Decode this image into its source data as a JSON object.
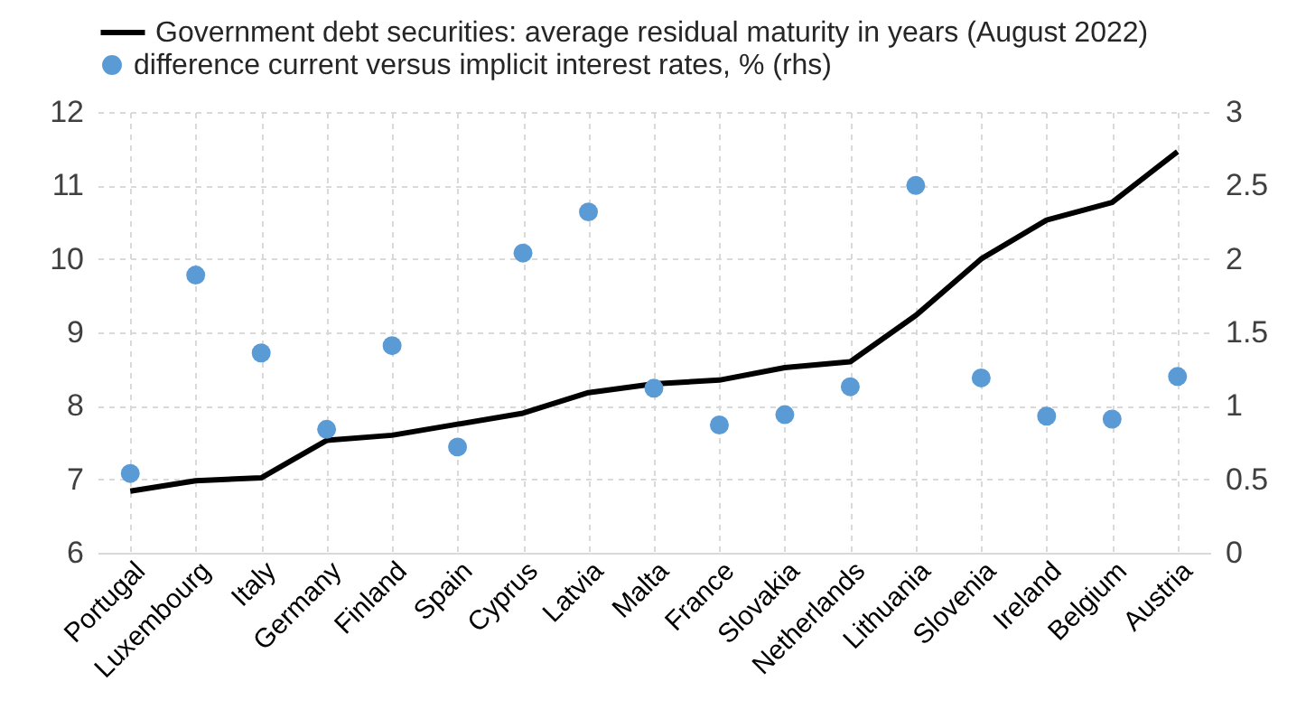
{
  "chart_data": {
    "type": "line",
    "categories": [
      "Portugal",
      "Luxembourg",
      "Italy",
      "Germany",
      "Finland",
      "Spain",
      "Cyprus",
      "Latvia",
      "Malta",
      "France",
      "Slovakia",
      "Netherlands",
      "Lithuania",
      "Slovenia",
      "Ireland",
      "Belgium",
      "Austria"
    ],
    "series": [
      {
        "name": "Government debt securities: average residual maturity in years (August 2022)",
        "color": "#000000",
        "values": [
          6.84,
          6.98,
          7.02,
          7.53,
          7.6,
          7.75,
          7.9,
          8.18,
          8.3,
          8.35,
          8.52,
          8.6,
          9.23,
          10.0,
          10.53,
          10.77,
          11.46
        ]
      },
      {
        "name": "difference current versus implicit interest rates, % (rhs)",
        "type": "scatter",
        "axis": "y2",
        "marker": "circle",
        "color": "#5b9bd5",
        "values": [
          0.54,
          1.89,
          1.36,
          0.84,
          1.41,
          0.72,
          2.04,
          2.32,
          1.12,
          0.87,
          0.94,
          1.13,
          2.5,
          1.19,
          0.93,
          0.91,
          1.2
        ]
      }
    ],
    "ylim": [
      6,
      12
    ],
    "yticks": [
      6,
      7,
      8,
      9,
      10,
      11,
      12
    ],
    "y2lim": [
      0,
      3
    ],
    "y2ticks": [
      0,
      0.5,
      1,
      1.5,
      2,
      2.5,
      3
    ],
    "grid": true,
    "legend": "top left"
  }
}
